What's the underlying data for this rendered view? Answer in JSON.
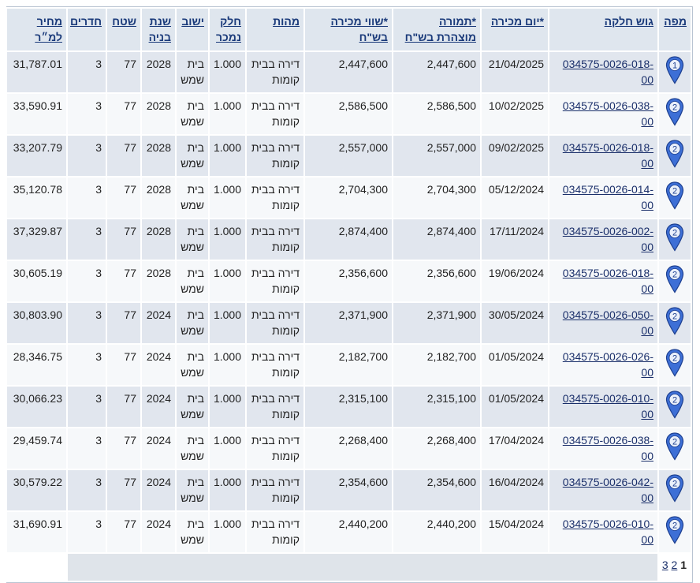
{
  "table": {
    "headers": [
      "מפה",
      "גוש חלקה",
      "*יום מכירה",
      "*תמורה מוצהרת בש\"ח",
      "*שווי מכירה בש\"ח",
      "מהות",
      "חלק נמכר",
      "ישוב",
      "שנת בניה",
      "שטח",
      "חדרים",
      "מחיר למ״ר"
    ],
    "rows": [
      [
        "1",
        "034575-0026-018-00",
        "21/04/2025",
        "2,447,600",
        "2,447,600",
        "דירה בבית קומות",
        "1.000",
        "בית שמש",
        "2028",
        "77",
        "3",
        "31,787.01"
      ],
      [
        "2",
        "034575-0026-038-00",
        "10/02/2025",
        "2,586,500",
        "2,586,500",
        "דירה בבית קומות",
        "1.000",
        "בית שמש",
        "2028",
        "77",
        "3",
        "33,590.91"
      ],
      [
        "2",
        "034575-0026-018-00",
        "09/02/2025",
        "2,557,000",
        "2,557,000",
        "דירה בבית קומות",
        "1.000",
        "בית שמש",
        "2028",
        "77",
        "3",
        "33,207.79"
      ],
      [
        "2",
        "034575-0026-014-00",
        "05/12/2024",
        "2,704,300",
        "2,704,300",
        "דירה בבית קומות",
        "1.000",
        "בית שמש",
        "2028",
        "77",
        "3",
        "35,120.78"
      ],
      [
        "2",
        "034575-0026-002-00",
        "17/11/2024",
        "2,874,400",
        "2,874,400",
        "דירה בבית קומות",
        "1.000",
        "בית שמש",
        "2028",
        "77",
        "3",
        "37,329.87"
      ],
      [
        "2",
        "034575-0026-018-00",
        "19/06/2024",
        "2,356,600",
        "2,356,600",
        "דירה בבית קומות",
        "1.000",
        "בית שמש",
        "2028",
        "77",
        "3",
        "30,605.19"
      ],
      [
        "2",
        "034575-0026-050-00",
        "30/05/2024",
        "2,371,900",
        "2,371,900",
        "דירה בבית קומות",
        "1.000",
        "בית שמש",
        "2024",
        "77",
        "3",
        "30,803.90"
      ],
      [
        "2",
        "034575-0026-026-00",
        "01/05/2024",
        "2,182,700",
        "2,182,700",
        "דירה בבית קומות",
        "1.000",
        "בית שמש",
        "2024",
        "77",
        "3",
        "28,346.75"
      ],
      [
        "2",
        "034575-0026-010-00",
        "01/05/2024",
        "2,315,100",
        "2,315,100",
        "דירה בבית קומות",
        "1.000",
        "בית שמש",
        "2024",
        "77",
        "3",
        "30,066.23"
      ],
      [
        "2",
        "034575-0026-038-00",
        "17/04/2024",
        "2,268,400",
        "2,268,400",
        "דירה בבית קומות",
        "1.000",
        "בית שמש",
        "2024",
        "77",
        "3",
        "29,459.74"
      ],
      [
        "2",
        "034575-0026-042-00",
        "16/04/2024",
        "2,354,600",
        "2,354,600",
        "דירה בבית קומות",
        "1.000",
        "בית שמש",
        "2024",
        "77",
        "3",
        "30,579.22"
      ],
      [
        "2",
        "034575-0026-010-00",
        "15/04/2024",
        "2,440,200",
        "2,440,200",
        "דירה בבית קומות",
        "1.000",
        "בית שמש",
        "2024",
        "77",
        "3",
        "31,690.91"
      ]
    ]
  },
  "pagination": {
    "current": "1",
    "pages": [
      "2",
      "3"
    ]
  }
}
